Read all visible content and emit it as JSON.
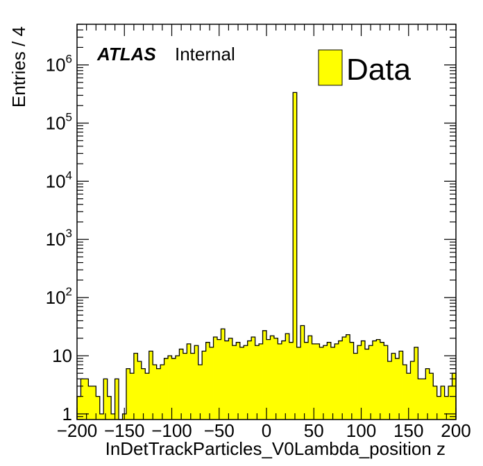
{
  "chart_data": {
    "type": "bar",
    "histogram": true,
    "xlabel": "InDetTrackParticles_V0Lambda_position z",
    "ylabel": "Entries / 4",
    "xlim": [
      -200,
      200
    ],
    "ylim": [
      0.8,
      5000000
    ],
    "yscale": "log",
    "bin_width": 4,
    "x_ticks": [
      -200,
      -150,
      -100,
      -50,
      0,
      50,
      100,
      150,
      200
    ],
    "x_tick_labels": [
      "−200",
      "−150",
      "−100",
      "−50",
      "0",
      "50",
      "100",
      "150",
      "200"
    ],
    "y_ticks": [
      {
        "value": 1,
        "base": "1",
        "exp": ""
      },
      {
        "value": 10,
        "base": "10",
        "exp": ""
      },
      {
        "value": 100,
        "base": "10",
        "exp": "2"
      },
      {
        "value": 1000,
        "base": "10",
        "exp": "3"
      },
      {
        "value": 10000,
        "base": "10",
        "exp": "4"
      },
      {
        "value": 100000,
        "base": "10",
        "exp": "5"
      },
      {
        "value": 1000000,
        "base": "10",
        "exp": "6"
      }
    ],
    "series": [
      {
        "name": "Data",
        "color": "#ffff00",
        "edge_color": "#000000",
        "bin_edges_start": -200,
        "values": [
          2,
          4,
          4,
          3,
          3,
          2,
          1,
          4,
          2,
          1,
          4,
          0,
          1,
          6,
          5,
          11,
          8,
          6,
          5,
          12,
          7,
          6,
          7,
          9,
          10,
          9,
          10,
          13,
          11,
          16,
          11,
          15,
          7,
          12,
          17,
          14,
          21,
          19,
          29,
          18,
          20,
          15,
          17,
          14,
          15,
          18,
          21,
          15,
          16,
          27,
          19,
          22,
          20,
          16,
          18,
          24,
          17,
          336000,
          14,
          33,
          17,
          22,
          16,
          16,
          14,
          15,
          17,
          14,
          16,
          18,
          21,
          23,
          17,
          11,
          15,
          18,
          13,
          15,
          18,
          19,
          17,
          15,
          8,
          11,
          9,
          12,
          7,
          5,
          8,
          14,
          4,
          4,
          6,
          5,
          3,
          2,
          3,
          2,
          3,
          5
        ]
      }
    ],
    "legend": {
      "entries": [
        "Data"
      ],
      "placement": "top-right"
    },
    "grid": false
  },
  "annotations": {
    "atlas": "ATLAS",
    "label": "Internal"
  }
}
